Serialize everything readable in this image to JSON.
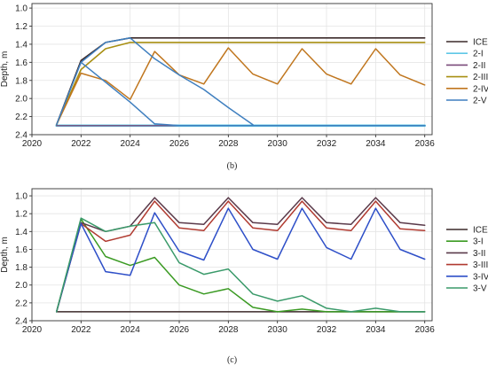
{
  "chart_data": [
    {
      "type": "line",
      "panel_label": "(b)",
      "xlabel": "",
      "ylabel": "Depth, m",
      "xlim": [
        2020,
        2036.3
      ],
      "ylim": [
        2.4,
        0.95
      ],
      "y_inverted": true,
      "xticks": [
        2020,
        2022,
        2024,
        2026,
        2028,
        2030,
        2032,
        2034,
        2036
      ],
      "yticks": [
        1.0,
        1.2,
        1.4,
        1.6,
        1.8,
        2.0,
        2.2,
        2.4
      ],
      "ytick_labels": [
        "1.0",
        "1.2",
        "1.4",
        "1.6",
        "1.8",
        "2.0",
        "2.2",
        "2.4"
      ],
      "grid": true,
      "legend_position": "right",
      "series": [
        {
          "name": "ICE",
          "color": "#3b2a2a",
          "width": 1.6,
          "x": [
            2021,
            2022,
            2023,
            2024,
            2025,
            2026,
            2027,
            2028,
            2029,
            2030,
            2031,
            2032,
            2033,
            2034,
            2035,
            2036
          ],
          "y": [
            2.29,
            1.58,
            1.38,
            1.33,
            1.33,
            1.33,
            1.33,
            1.33,
            1.33,
            1.33,
            1.33,
            1.33,
            1.33,
            1.33,
            1.33,
            1.33
          ]
        },
        {
          "name": "2-I",
          "color": "#5ec8e6",
          "width": 2.6,
          "x": [
            2021,
            2022,
            2023,
            2024,
            2025,
            2026,
            2027,
            2028,
            2029,
            2030,
            2031,
            2032,
            2033,
            2034,
            2035,
            2036
          ],
          "y": [
            2.3,
            2.3,
            2.3,
            2.3,
            2.3,
            2.3,
            2.3,
            2.3,
            2.3,
            2.3,
            2.3,
            2.3,
            2.3,
            2.3,
            2.3,
            2.3
          ]
        },
        {
          "name": "2-II",
          "color": "#7a4a7a",
          "width": 1.4,
          "x": [
            2021,
            2022,
            2023,
            2024,
            2025,
            2026,
            2027,
            2028,
            2029,
            2030,
            2031,
            2032,
            2033,
            2034,
            2035,
            2036
          ],
          "y": [
            2.3,
            2.3,
            2.3,
            2.3,
            2.3,
            2.3,
            2.3,
            2.3,
            2.3,
            2.3,
            2.3,
            2.3,
            2.3,
            2.3,
            2.3,
            2.3
          ]
        },
        {
          "name": "2-III",
          "color": "#a88f12",
          "width": 1.6,
          "x": [
            2021,
            2022,
            2023,
            2024,
            2025,
            2026,
            2027,
            2028,
            2029,
            2030,
            2031,
            2032,
            2033,
            2034,
            2035,
            2036
          ],
          "y": [
            2.29,
            1.68,
            1.45,
            1.38,
            1.38,
            1.38,
            1.38,
            1.38,
            1.38,
            1.38,
            1.38,
            1.38,
            1.38,
            1.38,
            1.38,
            1.38
          ]
        },
        {
          "name": "2-IV",
          "color": "#c0761e",
          "width": 1.5,
          "x": [
            2021,
            2022,
            2023,
            2024,
            2025,
            2026,
            2027,
            2028,
            2029,
            2030,
            2031,
            2032,
            2033,
            2034,
            2035,
            2036
          ],
          "y": [
            2.29,
            1.72,
            1.8,
            2.01,
            1.48,
            1.74,
            1.84,
            1.44,
            1.73,
            1.84,
            1.45,
            1.73,
            1.84,
            1.45,
            1.74,
            1.85
          ]
        },
        {
          "name": "2-V",
          "color": "#3f7fbf",
          "width": 1.5,
          "x": [
            2021,
            2022,
            2023,
            2024,
            2025,
            2026,
            2027,
            2028,
            2029,
            2030,
            2031,
            2032,
            2033,
            2034,
            2035,
            2036
          ],
          "y": [
            2.29,
            1.6,
            1.82,
            2.04,
            2.28,
            2.3,
            2.3,
            2.3,
            2.3,
            2.3,
            2.3,
            2.3,
            2.3,
            2.3,
            2.3,
            2.3
          ]
        },
        {
          "name": "",
          "color": "#3f7fbf",
          "width": 1.5,
          "x": [
            2022,
            2023,
            2024,
            2025,
            2026,
            2027,
            2028,
            2029
          ],
          "y": [
            1.6,
            1.38,
            1.33,
            1.56,
            1.74,
            1.9,
            2.1,
            2.29
          ]
        }
      ],
      "legend": [
        "ICE",
        "2-I",
        "2-II",
        "2-III",
        "2-IV",
        "2-V"
      ]
    },
    {
      "type": "line",
      "panel_label": "(c)",
      "xlabel": "",
      "ylabel": "Depth, m",
      "xlim": [
        2020,
        2036.3
      ],
      "ylim": [
        2.4,
        0.92
      ],
      "y_inverted": true,
      "xticks": [
        2020,
        2022,
        2024,
        2026,
        2028,
        2030,
        2032,
        2034,
        2036
      ],
      "yticks": [
        1.0,
        1.2,
        1.4,
        1.6,
        1.8,
        2.0,
        2.2,
        2.4
      ],
      "ytick_labels": [
        "1.0",
        "1.2",
        "1.4",
        "1.6",
        "1.8",
        "2.0",
        "2.2",
        "2.4"
      ],
      "grid": true,
      "legend_position": "right",
      "series": [
        {
          "name": "ICE",
          "color": "#3b2a2a",
          "width": 1.5,
          "x": [
            2021,
            2022,
            2023,
            2024,
            2025,
            2026,
            2027,
            2028,
            2029,
            2030,
            2031,
            2032,
            2033,
            2034,
            2035,
            2036
          ],
          "y": [
            2.3,
            2.3,
            2.3,
            2.3,
            2.3,
            2.3,
            2.3,
            2.3,
            2.3,
            2.3,
            2.3,
            2.3,
            2.3,
            2.3,
            2.3,
            2.3
          ]
        },
        {
          "name": "3-I",
          "color": "#3a9a22",
          "width": 1.5,
          "x": [
            2021,
            2022,
            2023,
            2024,
            2025,
            2026,
            2027,
            2028,
            2029,
            2030,
            2031,
            2032,
            2033,
            2034,
            2035,
            2036
          ],
          "y": [
            2.3,
            1.26,
            1.68,
            1.78,
            1.69,
            2.0,
            2.1,
            2.04,
            2.25,
            2.3,
            2.27,
            2.3,
            2.3,
            2.3,
            2.3,
            2.3
          ]
        },
        {
          "name": "3-II",
          "color": "#5a3a4a",
          "width": 1.5,
          "x": [
            2021,
            2022,
            2023,
            2024,
            2025,
            2026,
            2027,
            2028,
            2029,
            2030,
            2031,
            2032,
            2033,
            2034,
            2035,
            2036
          ],
          "y": [
            2.3,
            1.3,
            1.4,
            1.34,
            1.02,
            1.3,
            1.32,
            1.02,
            1.3,
            1.32,
            1.02,
            1.3,
            1.32,
            1.02,
            1.3,
            1.33
          ]
        },
        {
          "name": "3-III",
          "color": "#b03a30",
          "width": 1.5,
          "x": [
            2021,
            2022,
            2023,
            2024,
            2025,
            2026,
            2027,
            2028,
            2029,
            2030,
            2031,
            2032,
            2033,
            2034,
            2035,
            2036
          ],
          "y": [
            2.3,
            1.31,
            1.51,
            1.44,
            1.06,
            1.36,
            1.39,
            1.06,
            1.36,
            1.39,
            1.06,
            1.36,
            1.39,
            1.06,
            1.37,
            1.39
          ]
        },
        {
          "name": "3-IV",
          "color": "#2e4fc8",
          "width": 1.5,
          "x": [
            2021,
            2022,
            2023,
            2024,
            2025,
            2026,
            2027,
            2028,
            2029,
            2030,
            2031,
            2032,
            2033,
            2034,
            2035,
            2036
          ],
          "y": [
            2.3,
            1.31,
            1.85,
            1.89,
            1.19,
            1.62,
            1.72,
            1.14,
            1.6,
            1.71,
            1.14,
            1.58,
            1.71,
            1.14,
            1.6,
            1.71
          ]
        },
        {
          "name": "3-V",
          "color": "#3a9a6a",
          "width": 1.5,
          "x": [
            2021,
            2022,
            2023,
            2024,
            2025,
            2026,
            2027,
            2028,
            2029,
            2030,
            2031,
            2032,
            2033,
            2034,
            2035,
            2036
          ],
          "y": [
            2.3,
            1.25,
            1.4,
            1.34,
            1.3,
            1.75,
            1.88,
            1.82,
            2.1,
            2.18,
            2.12,
            2.26,
            2.3,
            2.26,
            2.3,
            2.3
          ]
        }
      ],
      "legend": [
        "ICE",
        "3-I",
        "3-II",
        "3-III",
        "3-IV",
        "3-V"
      ]
    }
  ]
}
